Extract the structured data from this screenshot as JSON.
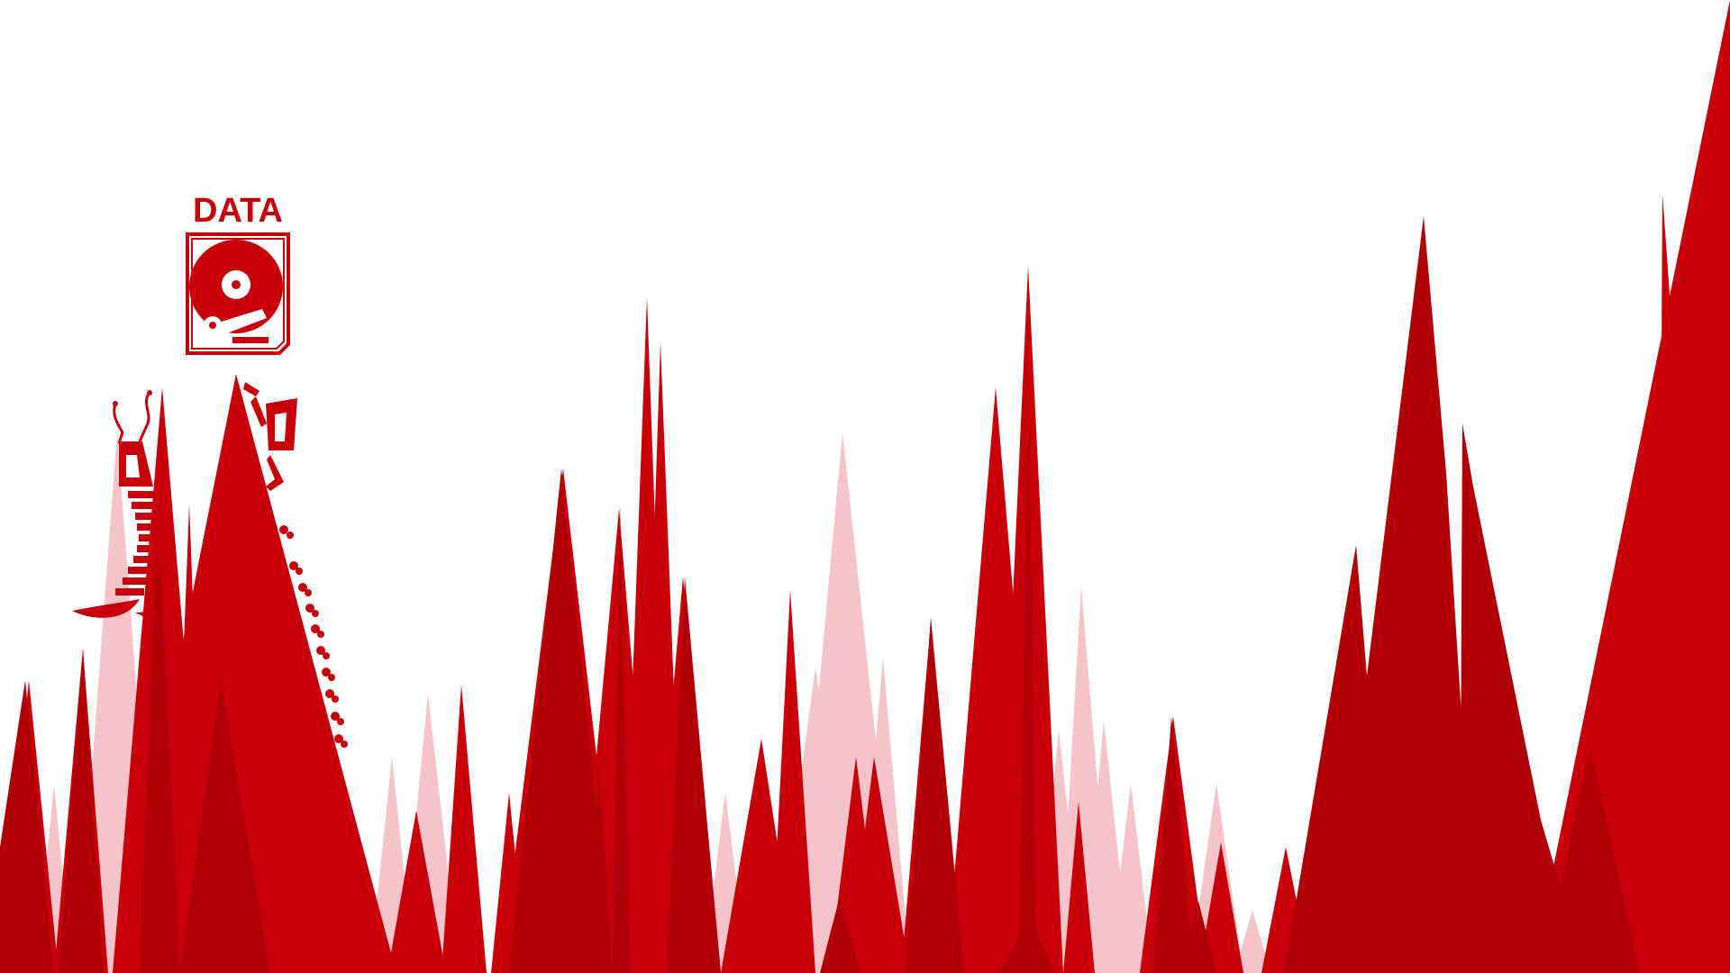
{
  "scene": {
    "background": "#ffffff",
    "colors": {
      "brand_red": "#c8000a",
      "dark_red": "#b00006",
      "pink": "#f5c3ca"
    }
  },
  "logo": {
    "title": "DATA",
    "icon": "hard-drive-icon"
  },
  "mascots": {
    "left": "centipede-robot-icon",
    "right": "robot-arm-icon",
    "swarm": "bug-swarm-icon"
  }
}
